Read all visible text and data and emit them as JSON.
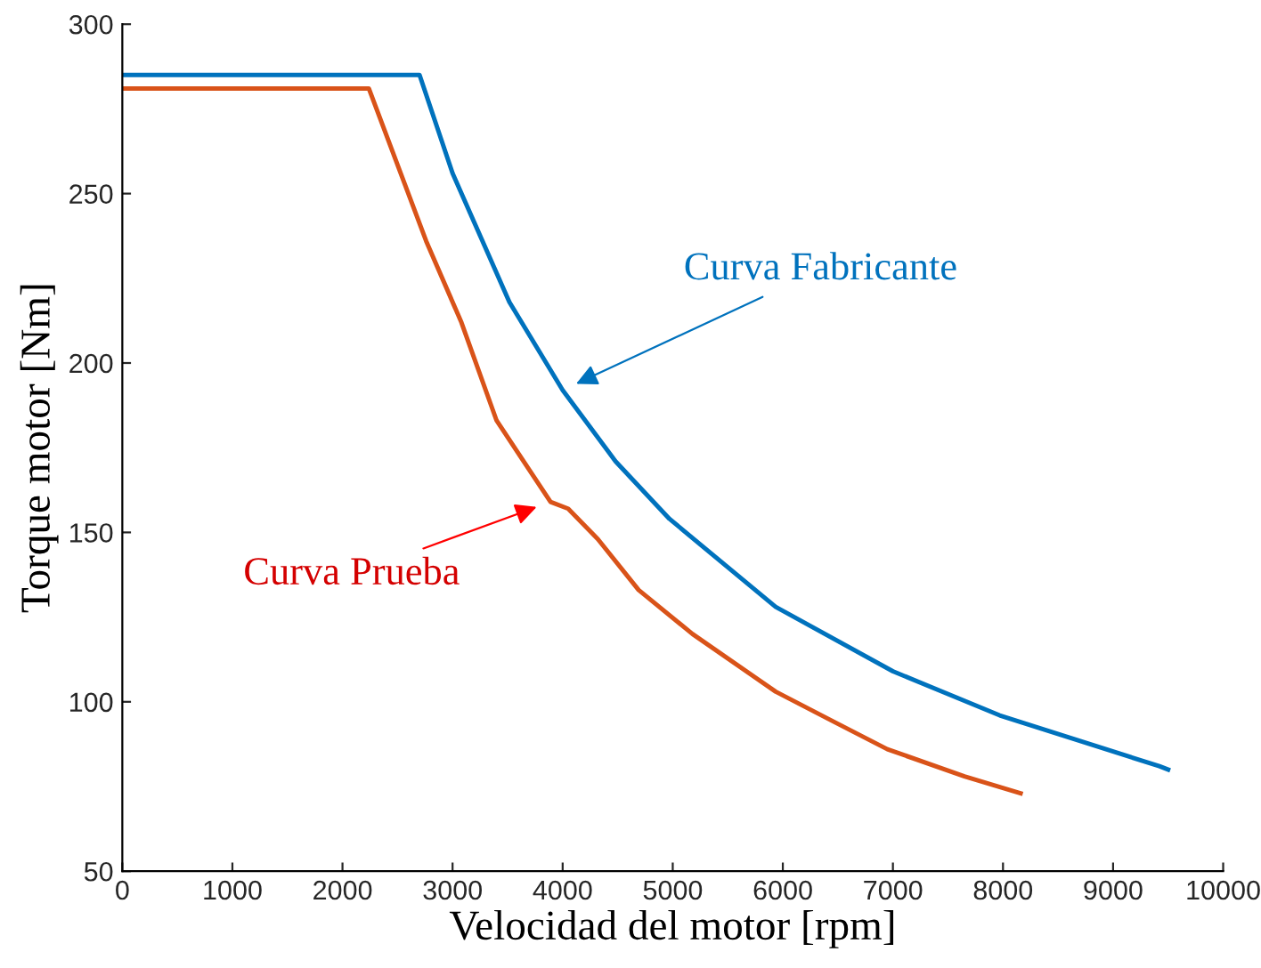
{
  "chart_data": {
    "type": "line",
    "xlabel": "Velocidad del motor [rpm]",
    "ylabel": "Torque motor [Nm]",
    "xlim": [
      0,
      10000
    ],
    "xticks": [
      0,
      1000,
      2000,
      3000,
      4000,
      5000,
      6000,
      7000,
      8000,
      9000,
      10000
    ],
    "ylim": [
      50,
      300
    ],
    "yticks": [
      50,
      100,
      150,
      200,
      250,
      300
    ],
    "grid": false,
    "legend": false,
    "marker": "none",
    "line_style": "solid",
    "series": [
      {
        "color": "#0072bd",
        "x": [
          0,
          2700,
          3000,
          3516,
          4000,
          4480,
          4970,
          5935,
          7000,
          7970,
          9420,
          9500
        ],
        "values": [
          285,
          285,
          256,
          218,
          192,
          171,
          154,
          128,
          109,
          96,
          81,
          80
        ]
      },
      {
        "color": "#d95319",
        "x": [
          0,
          2240,
          2760,
          3080,
          3400,
          3890,
          4050,
          4320,
          4690,
          5180,
          5935,
          6470,
          6950,
          7650,
          8160
        ],
        "values": [
          281,
          281,
          236,
          212,
          183,
          159,
          157,
          148,
          133,
          120,
          103,
          94,
          86,
          78,
          73
        ]
      }
    ],
    "annotations": [
      "Curva Fabricante",
      "Curva Prueba"
    ]
  }
}
